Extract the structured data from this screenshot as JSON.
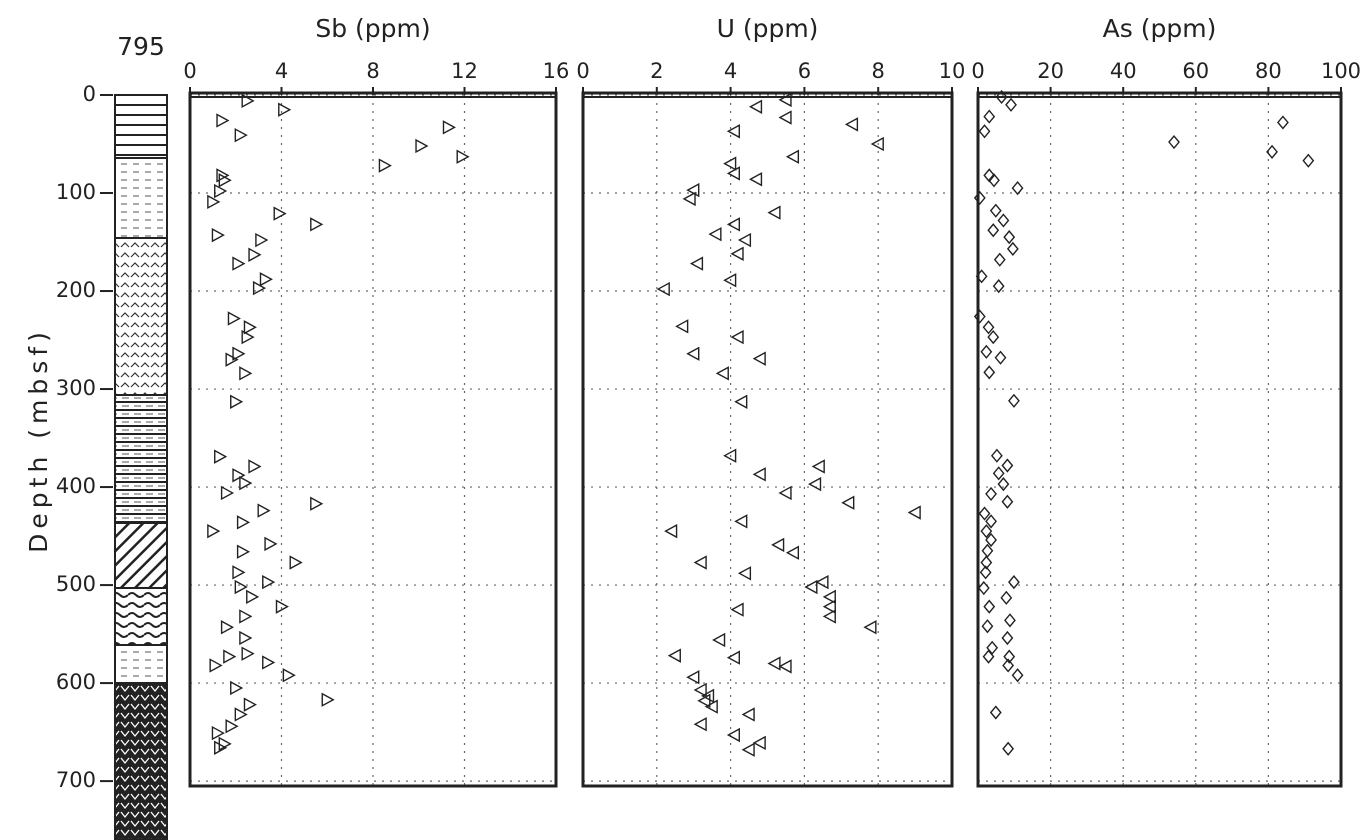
{
  "column_label": "795",
  "depth_axis": {
    "label": "Depth (mbsf)",
    "lim": [
      0,
      705
    ],
    "ticks": [
      0,
      100,
      200,
      300,
      400,
      500,
      600,
      700
    ],
    "reversed": true
  },
  "chart_data": [
    {
      "type": "scatter",
      "title": "Sb (ppm)",
      "xlim": [
        0,
        16
      ],
      "xticks": [
        0,
        4,
        8,
        12,
        16
      ],
      "grid": true,
      "marker": "triangle-right",
      "color": "#222",
      "x": [
        2.5,
        4.1,
        1.4,
        11.3,
        2.2,
        10.1,
        11.9,
        8.5,
        1.4,
        1.5,
        1.3,
        1.0,
        3.9,
        5.5,
        1.2,
        3.1,
        2.8,
        2.1,
        3.3,
        3.0,
        1.9,
        2.6,
        2.5,
        2.1,
        1.8,
        2.4,
        2.0,
        1.3,
        2.8,
        2.1,
        2.4,
        1.6,
        5.5,
        3.2,
        2.3,
        1.0,
        3.5,
        2.3,
        4.6,
        2.1,
        3.4,
        2.2,
        2.7,
        4.0,
        2.4,
        1.6,
        2.4,
        2.5,
        1.7,
        3.4,
        1.1,
        4.3,
        2.0,
        6.0,
        2.6,
        2.2,
        1.8,
        1.2,
        1.5,
        1.3
      ],
      "y": [
        6,
        15,
        26,
        33,
        41,
        52,
        63,
        72,
        82,
        87,
        98,
        109,
        121,
        132,
        143,
        148,
        163,
        172,
        188,
        197,
        228,
        237,
        247,
        264,
        270,
        284,
        313,
        369,
        379,
        388,
        396,
        406,
        417,
        424,
        436,
        445,
        458,
        466,
        477,
        487,
        497,
        502,
        512,
        522,
        532,
        543,
        554,
        570,
        573,
        579,
        582,
        592,
        605,
        617,
        622,
        632,
        644,
        651,
        662,
        666
      ]
    },
    {
      "type": "scatter",
      "title": "U (ppm)",
      "xlim": [
        0,
        10
      ],
      "xticks": [
        0,
        2,
        4,
        6,
        8,
        10
      ],
      "grid": true,
      "marker": "triangle-left",
      "color": "#222",
      "x": [
        5.5,
        4.7,
        5.5,
        7.3,
        4.1,
        8.0,
        5.7,
        4.0,
        4.1,
        4.7,
        3.0,
        2.9,
        5.2,
        4.1,
        3.6,
        4.4,
        4.2,
        3.1,
        4.0,
        2.2,
        2.7,
        4.2,
        3.0,
        4.8,
        3.8,
        4.3,
        4.0,
        6.4,
        4.8,
        6.3,
        5.5,
        7.2,
        9.0,
        4.3,
        2.4,
        5.3,
        5.7,
        3.2,
        4.4,
        6.5,
        6.2,
        6.7,
        6.7,
        4.2,
        6.7,
        7.8,
        3.7,
        2.5,
        4.1,
        5.2,
        5.5,
        3.0,
        3.2,
        3.4,
        3.3,
        3.5,
        4.5,
        3.2,
        4.1,
        4.8,
        4.5
      ],
      "y": [
        5,
        12,
        23,
        30,
        37,
        50,
        63,
        70,
        80,
        86,
        97,
        106,
        120,
        132,
        142,
        148,
        162,
        172,
        189,
        198,
        236,
        247,
        264,
        269,
        284,
        313,
        368,
        379,
        387,
        397,
        406,
        416,
        426,
        435,
        445,
        459,
        467,
        477,
        488,
        497,
        502,
        512,
        522,
        525,
        532,
        543,
        556,
        572,
        574,
        580,
        583,
        594,
        607,
        613,
        618,
        624,
        632,
        642,
        653,
        661,
        668
      ]
    },
    {
      "type": "scatter",
      "title": "As (ppm)",
      "xlim": [
        0,
        100
      ],
      "xticks": [
        0,
        20,
        40,
        60,
        80,
        100
      ],
      "grid": true,
      "marker": "diamond",
      "color": "#222",
      "x": [
        6.5,
        9.1,
        3.1,
        84,
        1.8,
        54,
        81,
        91,
        3.1,
        4.4,
        10.9,
        0.5,
        4.9,
        7.0,
        4.2,
        8.6,
        9.6,
        6.0,
        1.0,
        5.7,
        0.5,
        2.9,
        4.2,
        2.3,
        6.2,
        3.1,
        9.9,
        5.2,
        8.1,
        5.7,
        7.0,
        3.6,
        8.1,
        1.8,
        3.6,
        2.3,
        3.6,
        2.6,
        2.3,
        2.1,
        9.9,
        1.6,
        7.8,
        3.1,
        8.8,
        2.6,
        8.1,
        3.9,
        2.9,
        8.6,
        8.3,
        10.9,
        4.9,
        8.3
      ],
      "y": [
        2,
        10,
        22,
        28,
        37,
        48,
        58,
        67,
        82,
        87,
        95,
        105,
        118,
        128,
        138,
        145,
        157,
        168,
        185,
        195,
        226,
        237,
        247,
        262,
        268,
        283,
        312,
        368,
        378,
        386,
        397,
        407,
        415,
        427,
        435,
        445,
        454,
        465,
        477,
        487,
        497,
        503,
        513,
        522,
        536,
        542,
        554,
        564,
        573,
        573,
        582,
        592,
        630,
        667
      ]
    }
  ]
}
